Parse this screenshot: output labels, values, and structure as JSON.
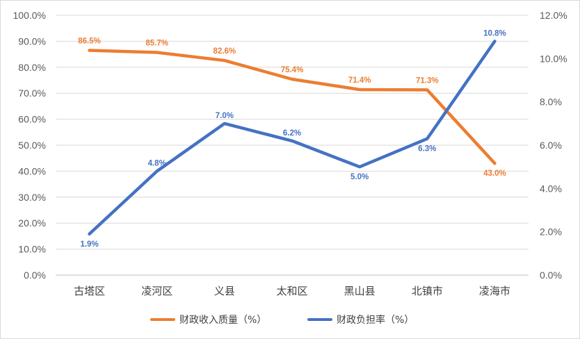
{
  "chart_data": {
    "type": "line",
    "categories": [
      "古塔区",
      "凌河区",
      "义县",
      "太和区",
      "黑山县",
      "北镇市",
      "凌海市"
    ],
    "series": [
      {
        "name": "财政收入质量（%）",
        "axis": "left",
        "color": "#ED7D31",
        "values": [
          86.5,
          85.7,
          82.6,
          75.4,
          71.4,
          71.3,
          43.0
        ],
        "labels": [
          "86.5%",
          "85.7%",
          "82.6%",
          "75.4%",
          "71.4%",
          "71.3%",
          "43.0%"
        ]
      },
      {
        "name": "财政负担率（%）",
        "axis": "right",
        "color": "#4472C4",
        "values": [
          1.9,
          4.8,
          7.0,
          6.2,
          5.0,
          6.3,
          10.8
        ],
        "labels": [
          "1.9%",
          "4.8%",
          "7.0%",
          "6.2%",
          "5.0%",
          "6.3%",
          "10.8%"
        ]
      }
    ],
    "y_left": {
      "ylim": [
        0,
        100
      ],
      "ticks": [
        "0.0%",
        "10.0%",
        "20.0%",
        "30.0%",
        "40.0%",
        "50.0%",
        "60.0%",
        "70.0%",
        "80.0%",
        "90.0%",
        "100.0%"
      ]
    },
    "y_right": {
      "ylim": [
        0,
        12
      ],
      "ticks": [
        "0.0%",
        "2.0%",
        "4.0%",
        "6.0%",
        "8.0%",
        "10.0%",
        "12.0%"
      ]
    },
    "grid": true,
    "legend": "bottom"
  }
}
